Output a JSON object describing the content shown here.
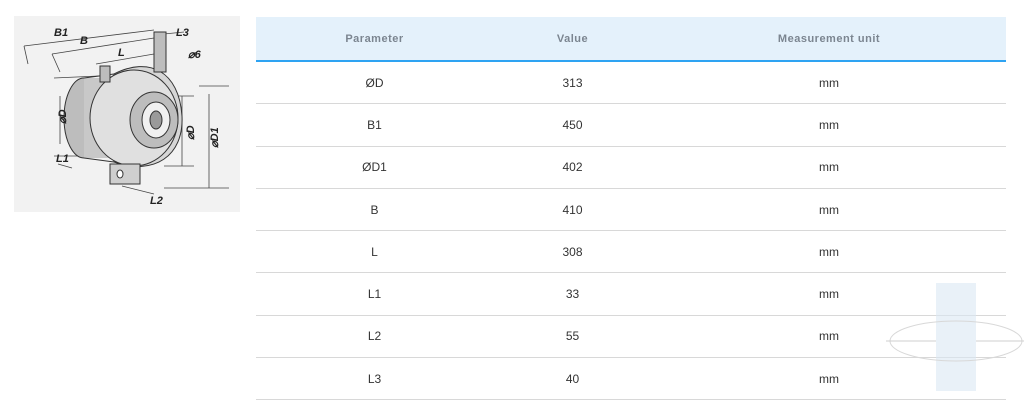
{
  "drawing": {
    "labels": {
      "b1": "B1",
      "b": "B",
      "l": "L",
      "l3": "L3",
      "d6": "⌀6",
      "d_left": "⌀D",
      "d_right": "⌀D",
      "d1": "⌀D1",
      "l1": "L1",
      "l2": "L2"
    }
  },
  "table": {
    "headers": {
      "parameter": "Parameter",
      "value": "Value",
      "unit": "Measurement unit"
    },
    "rows": [
      {
        "parameter": "ØD",
        "value": "313",
        "unit": "mm"
      },
      {
        "parameter": "B1",
        "value": "450",
        "unit": "mm"
      },
      {
        "parameter": "ØD1",
        "value": "402",
        "unit": "mm"
      },
      {
        "parameter": "B",
        "value": "410",
        "unit": "mm"
      },
      {
        "parameter": "L",
        "value": "308",
        "unit": "mm"
      },
      {
        "parameter": "L1",
        "value": "33",
        "unit": "mm"
      },
      {
        "parameter": "L2",
        "value": "55",
        "unit": "mm"
      },
      {
        "parameter": "L3",
        "value": "40",
        "unit": "mm"
      }
    ]
  }
}
